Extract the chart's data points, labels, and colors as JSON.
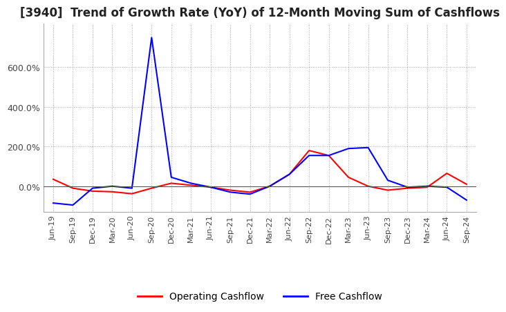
{
  "title": "[3940]  Trend of Growth Rate (YoY) of 12-Month Moving Sum of Cashflows",
  "title_fontsize": 12,
  "background_color": "#ffffff",
  "grid_color": "#aaaaaa",
  "legend_labels": [
    "Operating Cashflow",
    "Free Cashflow"
  ],
  "line_colors": [
    "#ff0000",
    "#0000ff"
  ],
  "x_labels": [
    "Jun-19",
    "Sep-19",
    "Dec-19",
    "Mar-20",
    "Jun-20",
    "Sep-20",
    "Dec-20",
    "Mar-21",
    "Jun-21",
    "Sep-21",
    "Dec-21",
    "Mar-22",
    "Jun-22",
    "Sep-22",
    "Dec-22",
    "Mar-23",
    "Jun-23",
    "Sep-23",
    "Dec-23",
    "Mar-24",
    "Jun-24",
    "Sep-24"
  ],
  "operating_cashflow": [
    0.35,
    -0.1,
    -0.25,
    -0.28,
    -0.38,
    -0.1,
    0.15,
    0.05,
    -0.05,
    -0.2,
    -0.3,
    0.0,
    0.6,
    1.8,
    1.55,
    0.45,
    0.0,
    -0.2,
    -0.1,
    -0.05,
    0.65,
    0.1
  ],
  "free_cashflow": [
    -0.85,
    -0.95,
    -0.1,
    0.0,
    -0.1,
    7.5,
    0.45,
    0.15,
    -0.05,
    -0.3,
    -0.4,
    0.0,
    0.6,
    1.55,
    1.55,
    1.9,
    1.95,
    0.3,
    -0.05,
    0.0,
    -0.05,
    -0.7
  ],
  "ylim_min": -1.3,
  "ylim_max": 8.2,
  "yticks": [
    0.0,
    2.0,
    4.0,
    6.0
  ],
  "ytick_labels": [
    "0.0%",
    "200.0%",
    "400.0%",
    "600.0%"
  ]
}
